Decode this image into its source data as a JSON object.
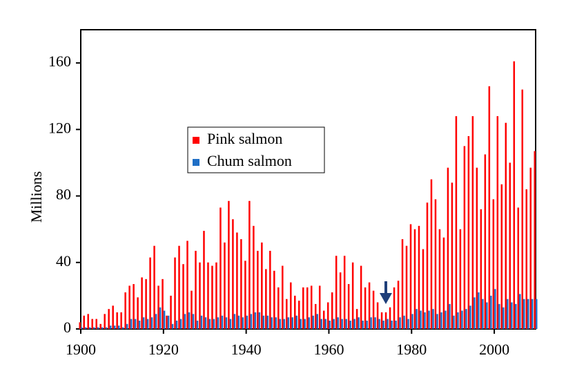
{
  "chart_data": {
    "type": "bar",
    "y_label": "Millions",
    "x": [
      1900,
      1901,
      1902,
      1903,
      1904,
      1905,
      1906,
      1907,
      1908,
      1909,
      1910,
      1911,
      1912,
      1913,
      1914,
      1915,
      1916,
      1917,
      1918,
      1919,
      1920,
      1921,
      1922,
      1923,
      1924,
      1925,
      1926,
      1927,
      1928,
      1929,
      1930,
      1931,
      1932,
      1933,
      1934,
      1935,
      1936,
      1937,
      1938,
      1939,
      1940,
      1941,
      1942,
      1943,
      1944,
      1945,
      1946,
      1947,
      1948,
      1949,
      1950,
      1951,
      1952,
      1953,
      1954,
      1955,
      1956,
      1957,
      1958,
      1959,
      1960,
      1961,
      1962,
      1963,
      1964,
      1965,
      1966,
      1967,
      1968,
      1969,
      1970,
      1971,
      1972,
      1973,
      1974,
      1975,
      1976,
      1977,
      1978,
      1979,
      1980,
      1981,
      1982,
      1983,
      1984,
      1985,
      1986,
      1987,
      1988,
      1989,
      1990,
      1991,
      1992,
      1993,
      1994,
      1995,
      1996,
      1997,
      1998,
      1999,
      2000,
      2001,
      2002,
      2003,
      2004,
      2005,
      2006,
      2007,
      2008,
      2009,
      2010
    ],
    "series": [
      {
        "name": "Pink salmon",
        "color": "#ff0000",
        "values": [
          4,
          8,
          9,
          6,
          6,
          3,
          9,
          12,
          14,
          10,
          10,
          22,
          26,
          27,
          19,
          31,
          30,
          43,
          50,
          26,
          30,
          8,
          20,
          43,
          50,
          39,
          53,
          23,
          47,
          40,
          59,
          40,
          38,
          40,
          73,
          52,
          77,
          66,
          58,
          54,
          41,
          77,
          62,
          47,
          52,
          36,
          47,
          35,
          25,
          38,
          18,
          28,
          20,
          17,
          25,
          25,
          26,
          15,
          26,
          11,
          16,
          22,
          44,
          34,
          44,
          27,
          40,
          12,
          38,
          25,
          28,
          23,
          16,
          10,
          10,
          13,
          25,
          29,
          54,
          50,
          63,
          60,
          62,
          48,
          76,
          90,
          78,
          60,
          55,
          97,
          88,
          128,
          60,
          110,
          116,
          128,
          97,
          72,
          105,
          146,
          78,
          128,
          87,
          124,
          100,
          161,
          73,
          144,
          84,
          97,
          107
        ]
      },
      {
        "name": "Chum salmon",
        "color": "#1f6fc6",
        "values": [
          1,
          1,
          1,
          1,
          1,
          1,
          1,
          2,
          2,
          2,
          1,
          3,
          6,
          6,
          5,
          7,
          6,
          7,
          9,
          13,
          11,
          8,
          3,
          5,
          6,
          9,
          10,
          9,
          5,
          8,
          7,
          6,
          6,
          7,
          8,
          7,
          6,
          9,
          8,
          7,
          8,
          9,
          10,
          10,
          8,
          8,
          7,
          7,
          6,
          6,
          7,
          7,
          8,
          6,
          6,
          7,
          8,
          9,
          6,
          6,
          5,
          6,
          7,
          6,
          6,
          5,
          6,
          7,
          5,
          5,
          7,
          7,
          6,
          5,
          6,
          5,
          5,
          7,
          8,
          6,
          9,
          12,
          11,
          10,
          11,
          12,
          9,
          10,
          11,
          15,
          8,
          10,
          11,
          12,
          14,
          19,
          22,
          18,
          16,
          20,
          24,
          15,
          13,
          18,
          16,
          15,
          21,
          18,
          18,
          18,
          18
        ]
      }
    ],
    "xlim": [
      1900,
      2010
    ],
    "xticks": [
      1900,
      1920,
      1940,
      1960,
      1980,
      2000
    ],
    "ylim": [
      0,
      180
    ],
    "yticks": [
      0,
      40,
      80,
      120,
      160
    ]
  }
}
